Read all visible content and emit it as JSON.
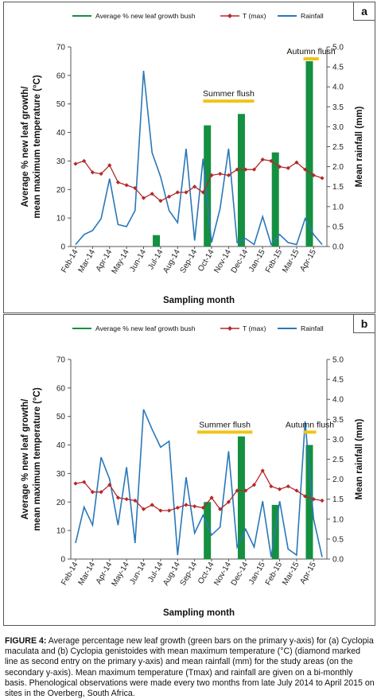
{
  "colors": {
    "bar": "#149040",
    "tmax": "#b22a2a",
    "rain": "#2a78b8",
    "flush": "#f0c419"
  },
  "legend": {
    "growth": "Average % new leaf growth bush",
    "tmax": "T (max)",
    "rain": "Rainfall"
  },
  "caption": {
    "label": "FIGURE 4:",
    "text": "Average percentage new leaf growth (green bars on the primary y-axis) for (a) Cyclopia maculata and (b) Cyclopia genistoides with mean maximum temperature (°C) (diamond marked line as second entry on the primary y-axis) and mean rainfall (mm) for the study areas (on the secondary y-axis). Mean maximum temperature (Tmax) and rainfall are given on a bi-monthly basis. Phenological observations were made every two months from late July 2014 to April 2015 on sites in the Overberg, South Africa."
  },
  "chart_data": [
    {
      "type": "bar",
      "panel_label": "a",
      "xlabel": "Sampling month",
      "ylabel_line1": "Average % new leaf growth/",
      "ylabel_line2": "mean maximum temperature (°C)",
      "y2label": "Mean rainfall (mm)",
      "ylim": [
        0,
        70
      ],
      "y2lim": [
        0,
        5.0
      ],
      "yticks": [
        "0",
        "10",
        "20",
        "30",
        "40",
        "50",
        "60",
        "70"
      ],
      "y2ticks": [
        "0.0",
        "0.5",
        "1.0",
        "1.5",
        "2.0",
        "2.5",
        "3.0",
        "3.5",
        "4.0",
        "4.5",
        "5.0"
      ],
      "categories": [
        "Feb-14",
        "Mar-14",
        "Apr-14",
        "May-14",
        "Jun-14",
        "Jul-14",
        "Aug-14",
        "Sep-14",
        "Oct-14",
        "Nov-14",
        "Dec-14",
        "Jan-15",
        "Feb-15",
        "Mar-15",
        "Apr-15"
      ],
      "bars": [
        {
          "position": 9.5,
          "value": 4
        },
        {
          "position": 15.5,
          "value": 42.5
        },
        {
          "position": 19.5,
          "value": 46.5
        },
        {
          "position": 23.5,
          "value": 33
        },
        {
          "position": 27.5,
          "value": 65
        }
      ],
      "tmax": [
        29,
        30,
        26,
        25.5,
        28.5,
        22.5,
        21.5,
        20.5,
        17,
        18.5,
        16,
        17.5,
        19,
        19,
        21,
        19,
        25,
        25.5,
        25,
        27,
        27,
        27,
        30.5,
        30,
        28,
        27.5,
        29.5,
        27,
        25,
        24
      ],
      "rainfall": [
        0.05,
        0.3,
        0.4,
        0.7,
        1.7,
        0.55,
        0.5,
        0.9,
        4.4,
        2.35,
        1.75,
        0.9,
        0.6,
        2.45,
        0.15,
        2.2,
        0.1,
        0.95,
        2.45,
        0.1,
        0.2,
        0.05,
        0.75,
        0.05,
        0.3,
        0.1,
        0.05,
        0.7,
        0.3,
        0.05
      ],
      "annotations": [
        {
          "text": "Summer flush",
          "from": 15,
          "to": 21,
          "level": 51
        },
        {
          "text": "Autumn flush",
          "from": 26.8,
          "to": 28.6,
          "level": 65.8
        }
      ]
    },
    {
      "type": "bar",
      "panel_label": "b",
      "xlabel": "Sampling month",
      "ylabel_line1": "Average % new leaf growth/",
      "ylabel_line2": "mean maximum temperature (°C)",
      "y2label": "Mean rainfall (mm)",
      "ylim": [
        0,
        70
      ],
      "y2lim": [
        0,
        5.0
      ],
      "yticks": [
        "0",
        "10",
        "20",
        "30",
        "40",
        "50",
        "60",
        "70"
      ],
      "y2ticks": [
        "0.0",
        "0.5",
        "1.0",
        "1.5",
        "2.0",
        "2.5",
        "3.0",
        "3.5",
        "4.0",
        "4.5",
        "5.0"
      ],
      "categories": [
        "Feb-14",
        "Mar-14",
        "Apr-14",
        "May-14",
        "Jun-14",
        "Jul-14",
        "Aug-14",
        "Sep-14",
        "Oct-14",
        "Nov-14",
        "Dec-14",
        "Jan-15",
        "Feb-15",
        "Mar-15",
        "Apr-15"
      ],
      "bars": [
        {
          "position": 15.5,
          "value": 20
        },
        {
          "position": 19.5,
          "value": 43
        },
        {
          "position": 23.5,
          "value": 19
        },
        {
          "position": 27.5,
          "value": 40
        }
      ],
      "tmax": [
        26.5,
        27,
        23.5,
        23.5,
        26,
        21.5,
        21,
        20.5,
        17.5,
        19,
        17,
        17,
        18,
        19,
        18.5,
        18,
        21.5,
        17.5,
        20,
        24,
        24,
        26,
        31,
        25.5,
        24.5,
        25.5,
        24,
        22,
        21,
        20.5
      ],
      "rainfall": [
        0.4,
        1.3,
        0.85,
        2.55,
        2.0,
        0.85,
        2.3,
        0.4,
        3.75,
        3.25,
        2.8,
        2.95,
        0.1,
        2.05,
        0.65,
        1.1,
        0.6,
        0.8,
        2.7,
        0.3,
        0.75,
        0.3,
        1.45,
        0.05,
        1.45,
        0.25,
        0.1,
        3.45,
        1.0,
        0.05
      ],
      "annotations": [
        {
          "text": "Summer flush",
          "from": 14.3,
          "to": 20.8,
          "level": 44.5
        },
        {
          "text": "Autumn flush",
          "from": 26.8,
          "to": 28.3,
          "level": 44.5
        }
      ]
    }
  ]
}
